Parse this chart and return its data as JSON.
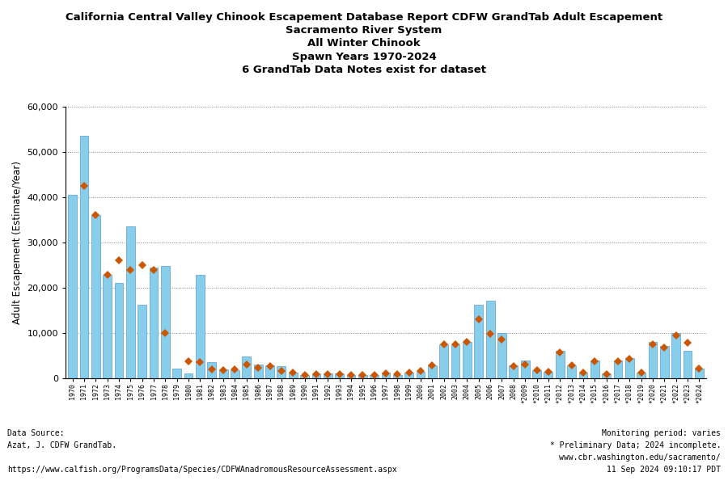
{
  "title_line1": "California Central Valley Chinook Escapement Database Report CDFW GrandTab Adult Escapement",
  "title_line2": "Sacramento River System",
  "title_line3": "All Winter Chinook",
  "title_line4": "Spawn Years 1970-2024",
  "title_line5": "6 GrandTab Data Notes exist for dataset",
  "ylabel": "Adult Escapement (Estimate/Year)",
  "ylim": [
    0,
    60000
  ],
  "yticks": [
    0,
    10000,
    20000,
    30000,
    40000,
    50000,
    60000
  ],
  "bar_color": "#87CEEB",
  "bar_edge_color": "#5B9BD5",
  "marker_color": "#CC5500",
  "years": [
    1970,
    1971,
    1972,
    1973,
    1974,
    1975,
    1976,
    1977,
    1978,
    1979,
    1980,
    1981,
    1982,
    1983,
    1984,
    1985,
    1986,
    1987,
    1988,
    1989,
    1990,
    1991,
    1992,
    1993,
    1994,
    1995,
    1996,
    1997,
    1998,
    1999,
    2000,
    2001,
    2002,
    2003,
    2004,
    2005,
    2006,
    2007,
    2008,
    2009,
    2010,
    2011,
    2012,
    2013,
    2014,
    2015,
    2016,
    2017,
    2018,
    2019,
    2020,
    2021,
    2022,
    2023,
    2024
  ],
  "bar_values": [
    40500,
    53500,
    36000,
    22800,
    21000,
    33500,
    16200,
    24500,
    24800,
    2200,
    1000,
    22800,
    3500,
    2000,
    1800,
    4800,
    3000,
    2800,
    2600,
    1200,
    700,
    1000,
    1000,
    1100,
    700,
    800,
    800,
    1200,
    800,
    1200,
    1500,
    2800,
    7500,
    7500,
    8000,
    16200,
    17200,
    10000,
    2800,
    4000,
    1800,
    1400,
    6000,
    2800,
    1200,
    3900,
    1100,
    4000,
    4500,
    1200,
    8000,
    7200,
    10000,
    6000,
    2200
  ],
  "marker_values": [
    null,
    42500,
    36000,
    22800,
    26000,
    24000,
    25000,
    24000,
    10000,
    null,
    3800,
    3500,
    2000,
    1800,
    2000,
    3000,
    2400,
    2600,
    1600,
    1200,
    800,
    900,
    900,
    900,
    700,
    700,
    800,
    1000,
    900,
    1200,
    1600,
    2800,
    7500,
    7500,
    8000,
    13000,
    9800,
    8500,
    2700,
    3000,
    1800,
    1400,
    5800,
    2800,
    1200,
    3700,
    900,
    3800,
    4200,
    1200,
    7500,
    6800,
    9500,
    7800,
    2200
  ],
  "preliminary_years": [
    2009,
    2010,
    2011,
    2012,
    2013,
    2014,
    2015,
    2016,
    2017,
    2018,
    2019,
    2020,
    2021,
    2022,
    2023,
    2024
  ],
  "footer_left1": "Data Source:",
  "footer_left2": "Azat, J. CDFW GrandTab.",
  "footer_left3": "https://www.calfish.org/ProgramsData/Species/CDFWAnadromousResourceAssessment.aspx",
  "footer_right1": "Monitoring period: varies",
  "footer_right2": "* Preliminary Data; 2024 incomplete.",
  "footer_right3": "www.cbr.washington.edu/sacramento/",
  "footer_right4": "11 Sep 2024 09:10:17 PDT"
}
